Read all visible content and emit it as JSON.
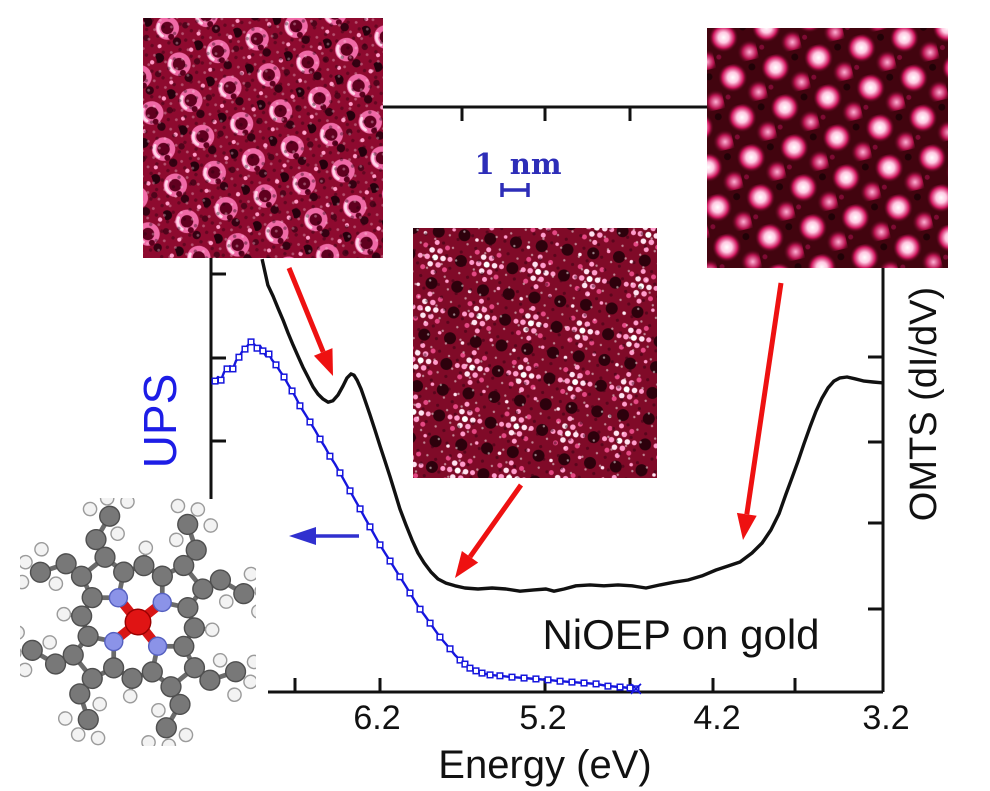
{
  "figure": {
    "ups_label": "UPS",
    "omts_label": "OMTS (dI/dV)",
    "sample_label": "NiOEP on gold",
    "xaxis_label": "Energy (eV)",
    "scalebar_label": "1 nm",
    "x_tick_labels": [
      "6.2",
      "5.2",
      "4.2",
      "3.2"
    ]
  },
  "colors": {
    "axis": "#111111",
    "black_curve": "#111111",
    "blue_curve": "#1616dd",
    "red_arrow": "#ee1111",
    "blue_arrow": "#3030cf",
    "scalebar": "#2d2db8",
    "ups_text": "#1d1de6",
    "nm_text": "#2d2db8",
    "stm": {
      "bg1": "#8e0a2f",
      "ring": "#ef6aa6",
      "ring_hole": "#60001f",
      "highlight": "#ffd4e8",
      "dark": "#26000d",
      "bright_dot": "#ff9cc8",
      "bg2": "#800a28",
      "dot_bright": "#ffe3f1",
      "dot_pink": "#ff9ccb",
      "dot_mid": "#e34883",
      "bg3": "#42040f",
      "blob_core": "#ffffff",
      "blob_pink": "#ffc9e2",
      "blob_mid": "#cf165e",
      "blob_dim": "#ffb0d4"
    },
    "molecule": {
      "carbon": "#787878",
      "carbon_edge": "#4f4f4f",
      "hydrogen": "#f3f3f3",
      "hydrogen_edge": "#9b9b9b",
      "nitrogen": "#8b93e8",
      "nitrogen_edge": "#5560c0",
      "nickel": "#e01414",
      "nickel_edge": "#990000",
      "bond": "#6b6b6b",
      "ni_bond": "#d81616"
    }
  },
  "chart_data": {
    "type": "line",
    "title": "",
    "xlabel": "Energy (eV)",
    "x_axis": {
      "ticks": [
        6.2,
        5.2,
        4.2,
        3.2
      ],
      "reversed": true,
      "range_ev": [
        7.2,
        3.2
      ]
    },
    "y_axis": {
      "label_left": "UPS",
      "label_right": "OMTS (dI/dV)",
      "units": "arbitrary",
      "range": [
        0,
        1
      ]
    },
    "annotations": [
      "NiOEP on gold",
      "1 nm"
    ],
    "legend": "none",
    "series": [
      {
        "name": "UPS",
        "color": "#1616dd",
        "marker": "open-square",
        "points": [
          [
            7.185,
            0.691
          ],
          [
            7.167,
            0.7
          ],
          [
            7.149,
            0.693
          ],
          [
            7.131,
            0.711
          ],
          [
            7.113,
            0.718
          ],
          [
            7.096,
            0.724
          ],
          [
            7.078,
            0.718
          ],
          [
            7.06,
            0.736
          ],
          [
            7.042,
            0.744
          ],
          [
            7.024,
            0.756
          ],
          [
            7.006,
            0.762
          ],
          [
            6.988,
            0.771
          ],
          [
            6.97,
            0.778
          ],
          [
            6.952,
            0.773
          ],
          [
            6.934,
            0.764
          ],
          [
            6.916,
            0.769
          ],
          [
            6.899,
            0.758
          ],
          [
            6.881,
            0.747
          ],
          [
            6.863,
            0.751
          ],
          [
            6.845,
            0.738
          ],
          [
            6.821,
            0.727
          ],
          [
            6.797,
            0.713
          ],
          [
            6.773,
            0.7
          ],
          [
            6.749,
            0.684
          ],
          [
            6.725,
            0.669
          ],
          [
            6.701,
            0.653
          ],
          [
            6.678,
            0.636
          ],
          [
            6.648,
            0.618
          ],
          [
            6.618,
            0.6
          ],
          [
            6.588,
            0.582
          ],
          [
            6.558,
            0.562
          ],
          [
            6.528,
            0.544
          ],
          [
            6.499,
            0.524
          ],
          [
            6.469,
            0.507
          ],
          [
            6.439,
            0.487
          ],
          [
            6.409,
            0.467
          ],
          [
            6.379,
            0.447
          ],
          [
            6.349,
            0.427
          ],
          [
            6.319,
            0.407
          ],
          [
            6.29,
            0.387
          ],
          [
            6.26,
            0.367
          ],
          [
            6.23,
            0.347
          ],
          [
            6.2,
            0.327
          ],
          [
            6.17,
            0.309
          ],
          [
            6.14,
            0.291
          ],
          [
            6.11,
            0.273
          ],
          [
            6.081,
            0.256
          ],
          [
            6.051,
            0.238
          ],
          [
            6.021,
            0.22
          ],
          [
            5.991,
            0.202
          ],
          [
            5.961,
            0.184
          ],
          [
            5.931,
            0.169
          ],
          [
            5.901,
            0.153
          ],
          [
            5.872,
            0.138
          ],
          [
            5.842,
            0.122
          ],
          [
            5.812,
            0.109
          ],
          [
            5.782,
            0.096
          ],
          [
            5.752,
            0.082
          ],
          [
            5.722,
            0.071
          ],
          [
            5.693,
            0.062
          ],
          [
            5.663,
            0.053
          ],
          [
            5.627,
            0.047
          ],
          [
            5.591,
            0.042
          ],
          [
            5.543,
            0.038
          ],
          [
            5.484,
            0.036
          ],
          [
            5.412,
            0.033
          ],
          [
            5.34,
            0.031
          ],
          [
            5.269,
            0.029
          ],
          [
            5.197,
            0.027
          ],
          [
            5.125,
            0.024
          ],
          [
            5.054,
            0.022
          ],
          [
            4.982,
            0.02
          ],
          [
            4.91,
            0.018
          ],
          [
            4.839,
            0.013
          ],
          [
            4.767,
            0.011
          ],
          [
            4.707,
            0.009
          ],
          [
            4.672,
            0.007
          ]
        ]
      },
      {
        "name": "OMTS (dI/dV)",
        "color": "#111111",
        "marker": "none",
        "points": [
          [
            6.904,
            0.962
          ],
          [
            6.869,
            0.904
          ],
          [
            6.839,
            0.88
          ],
          [
            6.809,
            0.853
          ],
          [
            6.779,
            0.827
          ],
          [
            6.749,
            0.798
          ],
          [
            6.719,
            0.771
          ],
          [
            6.69,
            0.747
          ],
          [
            6.66,
            0.722
          ],
          [
            6.63,
            0.7
          ],
          [
            6.6,
            0.678
          ],
          [
            6.57,
            0.662
          ],
          [
            6.54,
            0.651
          ],
          [
            6.51,
            0.644
          ],
          [
            6.481,
            0.647
          ],
          [
            6.451,
            0.66
          ],
          [
            6.421,
            0.68
          ],
          [
            6.397,
            0.698
          ],
          [
            6.373,
            0.707
          ],
          [
            6.355,
            0.704
          ],
          [
            6.337,
            0.693
          ],
          [
            6.313,
            0.673
          ],
          [
            6.29,
            0.649
          ],
          [
            6.26,
            0.616
          ],
          [
            6.23,
            0.582
          ],
          [
            6.2,
            0.547
          ],
          [
            6.17,
            0.513
          ],
          [
            6.14,
            0.478
          ],
          [
            6.11,
            0.442
          ],
          [
            6.081,
            0.407
          ],
          [
            6.045,
            0.371
          ],
          [
            6.009,
            0.338
          ],
          [
            5.973,
            0.309
          ],
          [
            5.937,
            0.287
          ],
          [
            5.896,
            0.267
          ],
          [
            5.854,
            0.251
          ],
          [
            5.806,
            0.242
          ],
          [
            5.752,
            0.236
          ],
          [
            5.693,
            0.231
          ],
          [
            5.615,
            0.229
          ],
          [
            5.531,
            0.231
          ],
          [
            5.448,
            0.229
          ],
          [
            5.364,
            0.224
          ],
          [
            5.281,
            0.227
          ],
          [
            5.209,
            0.229
          ],
          [
            5.161,
            0.224
          ],
          [
            5.101,
            0.229
          ],
          [
            5.03,
            0.236
          ],
          [
            4.946,
            0.238
          ],
          [
            4.863,
            0.236
          ],
          [
            4.779,
            0.238
          ],
          [
            4.696,
            0.236
          ],
          [
            4.612,
            0.231
          ],
          [
            4.528,
            0.238
          ],
          [
            4.445,
            0.244
          ],
          [
            4.361,
            0.249
          ],
          [
            4.278,
            0.258
          ],
          [
            4.194,
            0.271
          ],
          [
            4.122,
            0.28
          ],
          [
            4.051,
            0.289
          ],
          [
            3.979,
            0.309
          ],
          [
            3.919,
            0.331
          ],
          [
            3.866,
            0.36
          ],
          [
            3.818,
            0.396
          ],
          [
            3.776,
            0.44
          ],
          [
            3.74,
            0.476
          ],
          [
            3.704,
            0.513
          ],
          [
            3.669,
            0.551
          ],
          [
            3.633,
            0.589
          ],
          [
            3.597,
            0.624
          ],
          [
            3.561,
            0.653
          ],
          [
            3.525,
            0.676
          ],
          [
            3.49,
            0.691
          ],
          [
            3.454,
            0.698
          ],
          [
            3.412,
            0.7
          ],
          [
            3.364,
            0.696
          ],
          [
            3.31,
            0.691
          ],
          [
            3.257,
            0.689
          ],
          [
            3.203,
            0.687
          ]
        ]
      }
    ]
  }
}
